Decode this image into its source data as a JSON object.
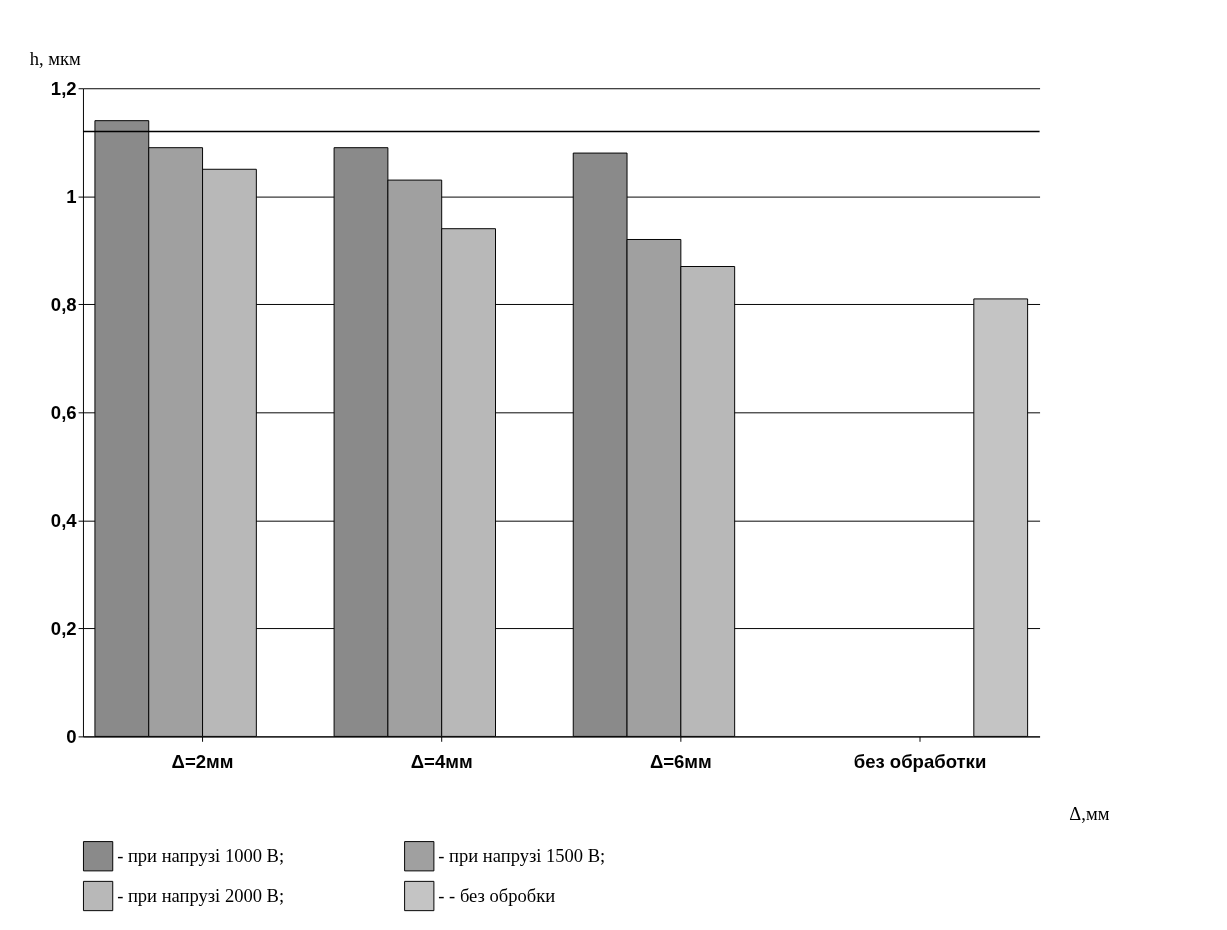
{
  "chart_data": {
    "type": "bar",
    "xlabel": "Δ,мм",
    "ylabel": "h, мкм",
    "categories": [
      "Δ=2мм",
      "Δ=4мм",
      "Δ=6мм",
      "без обработки"
    ],
    "series": [
      {
        "name": "- при напрузі 1000 В;",
        "color": "#8a8a8a",
        "values": [
          1.14,
          1.09,
          1.08,
          null
        ]
      },
      {
        "name": "- при напрузі 1500 В;",
        "color": "#a0a0a0",
        "values": [
          1.09,
          1.03,
          0.92,
          null
        ]
      },
      {
        "name": "- при напрузі 2000 В;",
        "color": "#b8b8b8",
        "values": [
          1.05,
          0.94,
          0.87,
          null
        ]
      },
      {
        "name": "- - без обробки",
        "color": "#c4c4c4",
        "values": [
          null,
          null,
          null,
          0.81
        ]
      }
    ],
    "ylim": [
      0,
      1.2
    ],
    "yticks": [
      0,
      {
        "value": 0.2,
        "label": "0,2"
      },
      {
        "value": 0.4,
        "label": "0,4"
      },
      {
        "value": 0.6,
        "label": "0,6"
      },
      {
        "value": 0.8,
        "label": "0,8"
      },
      1,
      {
        "value": 1.2,
        "label": "1,2"
      }
    ],
    "ref_lines": [
      {
        "axis": "y",
        "value": 1.12,
        "color": "#000000"
      }
    ],
    "grid": "y",
    "legend": "bottom"
  }
}
